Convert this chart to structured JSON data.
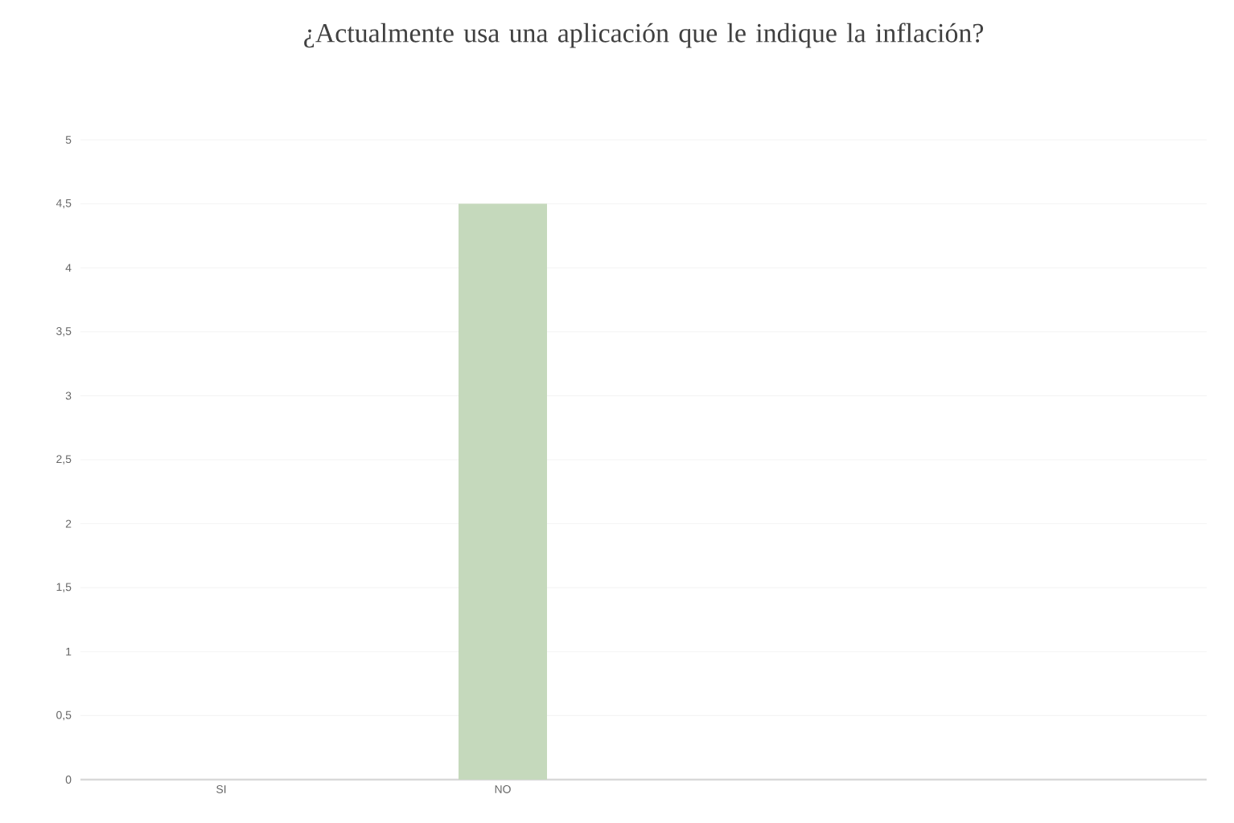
{
  "chart_data": {
    "type": "bar",
    "title": "¿Actualmente usa una aplicación que le indique la inflación?",
    "categories": [
      "SI",
      "NO",
      null,
      null
    ],
    "values": [
      0,
      4.5,
      null,
      null
    ],
    "color": "#c5d9bc",
    "ylim": [
      0,
      5
    ],
    "yticks": [
      0,
      {
        "value": 0.5,
        "label": "0,5"
      },
      1,
      {
        "value": 1.5,
        "label": "1,5"
      },
      2,
      {
        "value": 2.5,
        "label": "2,5"
      },
      3,
      {
        "value": 3.5,
        "label": "3,5"
      },
      4,
      {
        "value": 4.5,
        "label": "4,5"
      },
      5
    ],
    "grid": "y"
  }
}
